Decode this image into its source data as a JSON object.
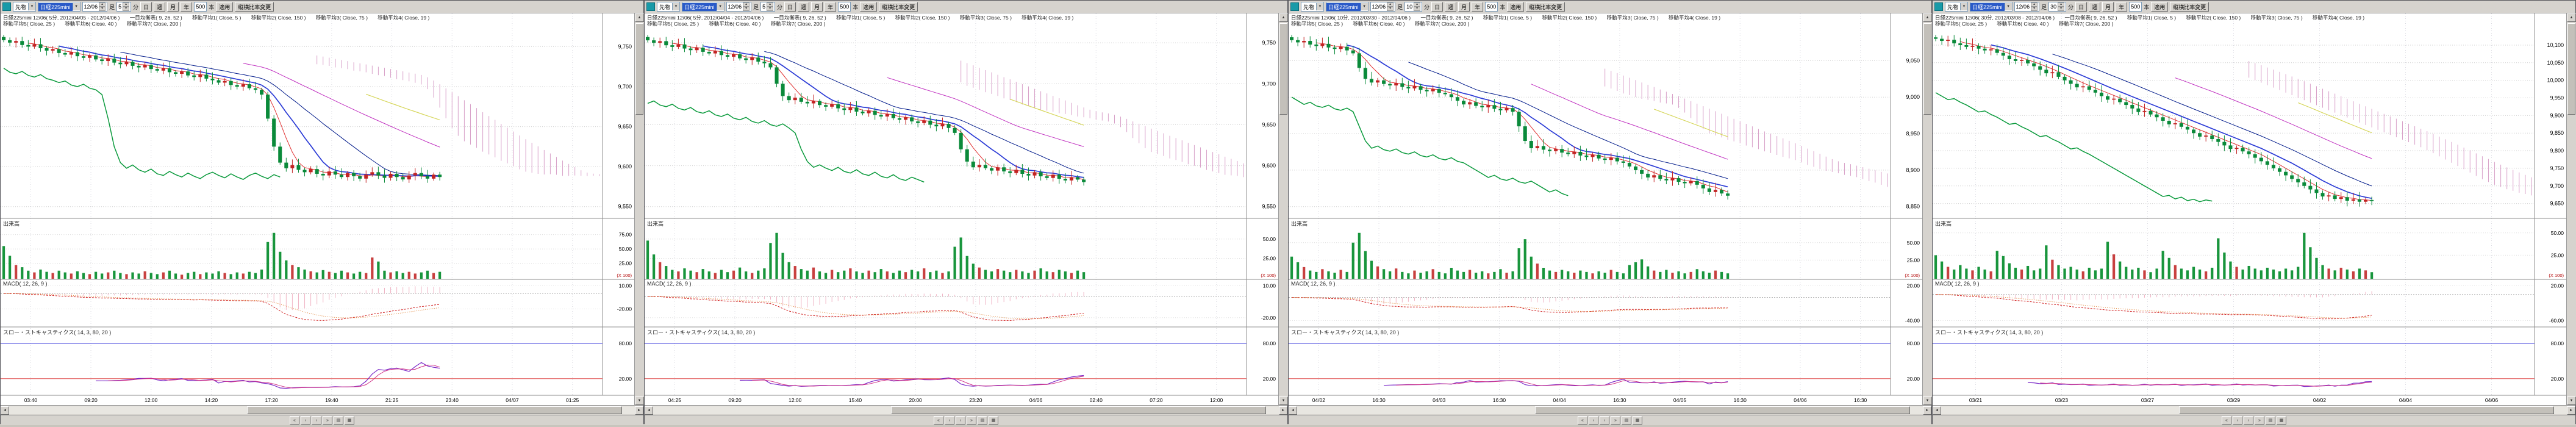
{
  "ui": {
    "chevron_down": "▼",
    "spin_up": "▲",
    "spin_down": "▼",
    "scroll_up": "▲",
    "scroll_down": "▼",
    "scroll_left": "◄",
    "scroll_right": "►",
    "status_icons": [
      "«",
      "‹",
      "›",
      "»",
      "▤",
      "▦"
    ]
  },
  "panels": [
    {
      "toolbar": {
        "market": "先物",
        "symbol": "日経225mini",
        "date": "12/06",
        "ashi": "足",
        "min_value": "5",
        "min_unit": "分",
        "day": "日",
        "week": "週",
        "month": "月",
        "year": "年",
        "bars": "500",
        "bars_unit": "本",
        "apply": "適用",
        "ratio": "縦横比率変更"
      },
      "legend1": [
        "日経225mini 12/06( 5分, 2012/04/05 - 2012/04/06 )",
        "一目均衡表( 9, 26, 52 )",
        "移動平均1( Close, 5 )",
        "移動平均2( Close, 150 )",
        "移動平均3( Close, 75 )",
        "移動平均4( Close, 19 )"
      ],
      "legend2": [
        "移動平均5( Close, 25 )",
        "移動平均6( Close, 40 )",
        "移動平均7( Close, 200 )"
      ],
      "volume_label": "出来高",
      "volume_unit": "(X 100)",
      "macd_label": "MACD( 12, 26, 9 )",
      "stoch_label": "スロー・ストキャスティクス( 14, 3, 80, 20 )",
      "price_axis": [
        "9,750",
        "9,700",
        "9,650",
        "9,600",
        "9,550"
      ],
      "volume_axis": [
        "75.00",
        "50.00",
        "25.00"
      ],
      "macd_axis": [
        "10.00",
        "-20.00"
      ],
      "stoch_axis": [
        "80.00",
        "20.00"
      ],
      "time_labels": [
        "03:40",
        "09:20",
        "12:00",
        "14:20",
        "17:20",
        "19:40",
        "21:25",
        "23:40",
        "04/07",
        "01:25"
      ],
      "chart_data": {
        "type": "candlestick",
        "closes": [
          9758,
          9755,
          9757,
          9752,
          9750,
          9753,
          9748,
          9745,
          9747,
          9742,
          9740,
          9743,
          9738,
          9736,
          9739,
          9734,
          9732,
          9735,
          9730,
          9728,
          9731,
          9726,
          9724,
          9727,
          9722,
          9720,
          9723,
          9718,
          9716,
          9719,
          9714,
          9712,
          9715,
          9710,
          9708,
          9705,
          9707,
          9702,
          9700,
          9703,
          9698,
          9696,
          9690,
          9660,
          9625,
          9605,
          9598,
          9602,
          9596,
          9593,
          9597,
          9591,
          9589,
          9594,
          9590,
          9587,
          9592,
          9588,
          9585,
          9590,
          9593,
          9589,
          9586,
          9591,
          9587,
          9584,
          9589,
          9592,
          9588,
          9585,
          9590,
          9587
        ],
        "volumes": [
          55,
          38,
          22,
          18,
          12,
          9,
          14,
          10,
          8,
          12,
          9,
          7,
          11,
          8,
          6,
          10,
          7,
          9,
          12,
          8,
          6,
          9,
          7,
          11,
          8,
          6,
          9,
          12,
          7,
          5,
          8,
          10,
          6,
          9,
          7,
          11,
          8,
          6,
          9,
          7,
          10,
          8,
          14,
          62,
          78,
          45,
          30,
          22,
          18,
          14,
          11,
          9,
          13,
          10,
          8,
          12,
          9,
          7,
          10,
          8,
          35,
          28,
          12,
          9,
          11,
          8,
          10,
          7,
          9,
          12,
          8,
          10
        ]
      }
    },
    {
      "toolbar": {
        "market": "先物",
        "symbol": "日経225mini",
        "date": "12/06",
        "ashi": "足",
        "min_value": "5",
        "min_unit": "分",
        "day": "日",
        "week": "週",
        "month": "月",
        "year": "年",
        "bars": "500",
        "bars_unit": "本",
        "apply": "適用",
        "ratio": "縦横比率変更"
      },
      "legend1": [
        "日経225mini 12/06( 5分, 2012/04/04 - 2012/04/06 )",
        "一目均衡表( 9, 26, 52 )",
        "移動平均1( Close, 5 )",
        "移動平均2( Close, 150 )",
        "移動平均3( Close, 75 )",
        "移動平均4( Close, 19 )"
      ],
      "legend2": [
        "移動平均5( Close, 25 )",
        "移動平均6( Close, 40 )",
        "移動平均7( Close, 200 )"
      ],
      "volume_label": "出来高",
      "volume_unit": "(X 100)",
      "macd_label": "MACD( 12, 26, 9 )",
      "stoch_label": "スロー・ストキャスティクス( 14, 3, 80, 20 )",
      "price_axis": [
        "9,750",
        "9,700",
        "9,650",
        "9,600",
        "9,550"
      ],
      "volume_axis": [
        "50.00",
        "25.00"
      ],
      "macd_axis": [
        "10.00",
        "-20.00"
      ],
      "stoch_axis": [
        "80.00",
        "20.00"
      ],
      "time_labels": [
        "04:25",
        "09:20",
        "12:00",
        "15:40",
        "20:00",
        "23:20",
        "04/06",
        "02:40",
        "07:20",
        "12:00"
      ],
      "chart_data": {
        "type": "candlestick",
        "closes": [
          9753,
          9750,
          9752,
          9747,
          9745,
          9748,
          9743,
          9741,
          9744,
          9739,
          9737,
          9740,
          9735,
          9733,
          9736,
          9731,
          9729,
          9732,
          9727,
          9725,
          9720,
          9700,
          9685,
          9680,
          9683,
          9678,
          9676,
          9679,
          9674,
          9672,
          9675,
          9670,
          9668,
          9671,
          9666,
          9664,
          9667,
          9662,
          9660,
          9663,
          9658,
          9656,
          9659,
          9654,
          9652,
          9655,
          9650,
          9648,
          9651,
          9646,
          9640,
          9620,
          9605,
          9598,
          9601,
          9597,
          9594,
          9598,
          9593,
          9591,
          9595,
          9590,
          9588,
          9592,
          9587,
          9585,
          9589,
          9584,
          9582,
          9586,
          9583,
          9580
        ],
        "volumes": [
          48,
          30,
          20,
          15,
          10,
          8,
          12,
          9,
          7,
          11,
          8,
          6,
          10,
          7,
          9,
          13,
          8,
          6,
          9,
          12,
          45,
          58,
          32,
          20,
          15,
          11,
          9,
          13,
          8,
          6,
          10,
          7,
          9,
          12,
          8,
          6,
          9,
          7,
          11,
          8,
          6,
          9,
          7,
          10,
          8,
          12,
          7,
          9,
          6,
          8,
          40,
          52,
          28,
          18,
          13,
          10,
          8,
          11,
          9,
          7,
          10,
          8,
          6,
          9,
          12,
          8,
          7,
          10,
          8,
          6,
          9,
          7
        ]
      }
    },
    {
      "toolbar": {
        "market": "先物",
        "symbol": "日経225mini",
        "date": "12/06",
        "ashi": "足",
        "min_value": "10",
        "min_unit": "分",
        "day": "日",
        "week": "週",
        "month": "月",
        "year": "年",
        "bars": "500",
        "bars_unit": "本",
        "apply": "適用",
        "ratio": "縦横比率変更"
      },
      "legend1": [
        "日経225mini 12/06( 10分, 2012/03/30 - 2012/04/06 )",
        "一目均衡表( 9, 26, 52 )",
        "移動平均1( Close, 5 )",
        "移動平均2( Close, 150 )",
        "移動平均3( Close, 75 )",
        "移動平均4( Close, 19 )"
      ],
      "legend2": [
        "移動平均5( Close, 25 )",
        "移動平均6( Close, 40 )",
        "移動平均7( Close, 200 )"
      ],
      "volume_label": "出来高",
      "volume_unit": "(X 100)",
      "macd_label": "MACD( 12, 26, 9 )",
      "stoch_label": "スロー・ストキャスティクス( 14, 3, 80, 20 )",
      "price_axis": [
        "9,050",
        "9,000",
        "8,950",
        "8,900",
        "8,850"
      ],
      "volume_axis": [
        "50.00",
        "25.00"
      ],
      "macd_axis": [
        "20.00",
        "-40.00"
      ],
      "stoch_axis": [
        "80.00",
        "20.00"
      ],
      "time_labels": [
        "04/02",
        "16:30",
        "04/03",
        "16:30",
        "04/04",
        "16:30",
        "04/05",
        "16:30",
        "04/06",
        "16:30"
      ],
      "chart_data": {
        "type": "candlestick",
        "closes": [
          9078,
          9075,
          9077,
          9072,
          9070,
          9073,
          9068,
          9066,
          9069,
          9064,
          9060,
          9040,
          9025,
          9020,
          9023,
          9018,
          9016,
          9019,
          9014,
          9012,
          9015,
          9010,
          9008,
          9011,
          9006,
          9004,
          9000,
          8995,
          8990,
          8993,
          8988,
          8986,
          8989,
          8984,
          8982,
          8985,
          8980,
          8960,
          8940,
          8930,
          8933,
          8928,
          8926,
          8929,
          8924,
          8922,
          8925,
          8920,
          8918,
          8921,
          8916,
          8914,
          8917,
          8912,
          8910,
          8905,
          8900,
          8895,
          8890,
          8893,
          8888,
          8886,
          8889,
          8884,
          8882,
          8885,
          8880,
          8875,
          8870,
          8873,
          8868,
          8865
        ],
        "volumes": [
          30,
          22,
          15,
          10,
          8,
          12,
          9,
          7,
          11,
          8,
          50,
          64,
          38,
          24,
          16,
          12,
          9,
          13,
          8,
          6,
          10,
          7,
          9,
          12,
          8,
          6,
          14,
          10,
          8,
          11,
          7,
          9,
          6,
          8,
          12,
          7,
          9,
          42,
          55,
          30,
          20,
          14,
          10,
          8,
          11,
          9,
          7,
          10,
          8,
          6,
          9,
          7,
          11,
          8,
          6,
          18,
          22,
          26,
          16,
          10,
          8,
          11,
          7,
          9,
          6,
          8,
          12,
          9,
          7,
          10,
          8,
          6
        ]
      }
    },
    {
      "toolbar": {
        "market": "先物",
        "symbol": "日経225mini",
        "date": "12/06",
        "ashi": "足",
        "min_value": "30",
        "min_unit": "分",
        "day": "日",
        "week": "週",
        "month": "月",
        "year": "年",
        "bars": "500",
        "bars_unit": "本",
        "apply": "適用",
        "ratio": "縦横比率変更"
      },
      "legend1": [
        "日経225mini 12/06( 30分, 2012/03/08 - 2012/04/06 )",
        "一目均衡表( 9, 26, 52 )",
        "移動平均1( Close, 5 )",
        "移動平均2( Close, 150 )",
        "移動平均3( Close, 75 )",
        "移動平均4( Close, 19 )"
      ],
      "legend2": [
        "移動平均5( Close, 25 )",
        "移動平均6( Close, 40 )",
        "移動平均7( Close, 200 )"
      ],
      "volume_label": "出来高",
      "volume_unit": "(X 100)",
      "macd_label": "MACD( 12, 26, 9 )",
      "stoch_label": "スロー・ストキャスティクス( 14, 3, 80, 20 )",
      "price_axis": [
        "10,100",
        "10,050",
        "10,000",
        "9,950",
        "9,900",
        "9,850",
        "9,800",
        "9,750",
        "9,700",
        "9,650"
      ],
      "volume_axis": [
        "50.00",
        "25.00"
      ],
      "macd_axis": [
        "20.00",
        "-60.00"
      ],
      "stoch_axis": [
        "80.00",
        "20.00"
      ],
      "time_labels": [
        "03/21",
        "03/23",
        "03/27",
        "03/29",
        "04/02",
        "04/04",
        "04/06"
      ],
      "chart_data": {
        "type": "candlestick",
        "closes": [
          10118,
          10112,
          10115,
          10105,
          10100,
          10095,
          10098,
          10090,
          10085,
          10088,
          10078,
          10070,
          10060,
          10055,
          10058,
          10048,
          10040,
          10030,
          10020,
          10023,
          10010,
          10000,
          9990,
          9980,
          9983,
          9973,
          9965,
          9955,
          9945,
          9948,
          9938,
          9930,
          9920,
          9910,
          9913,
          9903,
          9895,
          9885,
          9875,
          9878,
          9868,
          9860,
          9850,
          9840,
          9843,
          9833,
          9825,
          9815,
          9805,
          9808,
          9798,
          9790,
          9780,
          9770,
          9760,
          9750,
          9740,
          9730,
          9720,
          9710,
          9700,
          9690,
          9680,
          9670,
          9673,
          9663,
          9668,
          9658,
          9662,
          9655,
          9660,
          9657
        ],
        "volumes": [
          25,
          18,
          12,
          9,
          14,
          10,
          8,
          12,
          9,
          7,
          30,
          24,
          16,
          11,
          9,
          13,
          8,
          10,
          36,
          20,
          14,
          10,
          12,
          9,
          7,
          11,
          8,
          10,
          40,
          26,
          18,
          12,
          9,
          11,
          8,
          6,
          10,
          30,
          22,
          14,
          10,
          8,
          12,
          9,
          7,
          11,
          44,
          28,
          18,
          12,
          9,
          13,
          10,
          8,
          11,
          9,
          7,
          10,
          8,
          12,
          50,
          34,
          22,
          14,
          10,
          8,
          11,
          9,
          7,
          10,
          8,
          6
        ]
      }
    }
  ]
}
